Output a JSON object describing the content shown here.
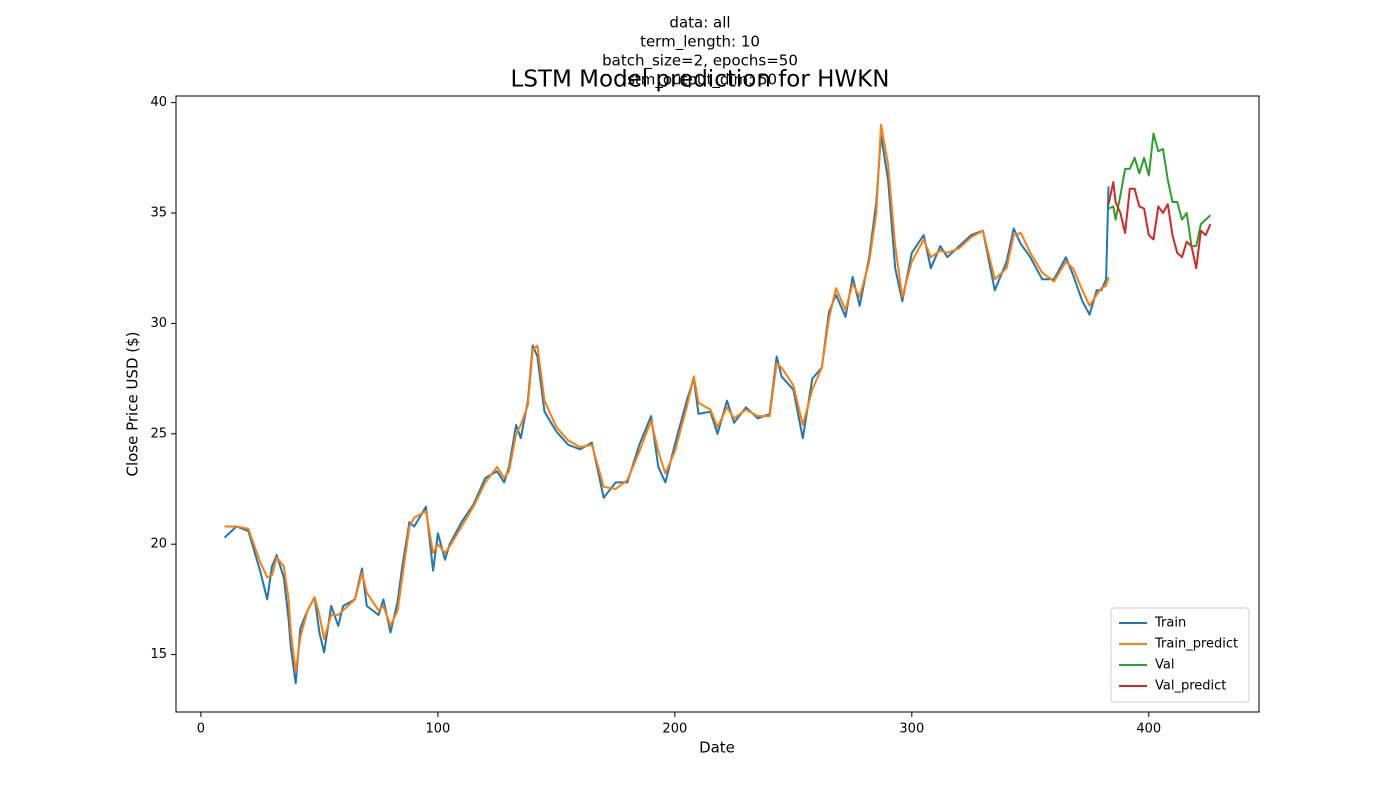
{
  "chart_data": {
    "type": "line",
    "title": "LSTM Model prediction for HWKN",
    "subtitle": [
      "data: all",
      "term_length: 10",
      "batch_size=2, epochs=50",
      "lstm_output_dim: 50"
    ],
    "x_label": "Date",
    "y_label": "Close Price USD ($)",
    "xlim": [
      -10.5,
      446.5
    ],
    "xticks": [
      0,
      100,
      200,
      300,
      400
    ],
    "ylim": [
      12.4,
      40.3
    ],
    "yticks": [
      15,
      20,
      25,
      30,
      35,
      40
    ],
    "legend": "lower right",
    "series": [
      {
        "name": "Train",
        "color": "#1f77b4",
        "x": [
          10,
          15,
          20,
          25,
          28,
          30,
          32,
          35,
          37,
          38,
          40,
          42,
          45,
          48,
          50,
          52,
          55,
          58,
          60,
          65,
          68,
          70,
          75,
          77,
          80,
          83,
          85,
          88,
          90,
          95,
          98,
          100,
          103,
          105,
          110,
          115,
          120,
          125,
          128,
          130,
          133,
          135,
          138,
          140,
          142,
          145,
          150,
          155,
          160,
          165,
          170,
          175,
          180,
          185,
          190,
          193,
          196,
          200,
          205,
          208,
          210,
          215,
          218,
          222,
          225,
          230,
          235,
          240,
          243,
          245,
          250,
          254,
          258,
          262,
          265,
          268,
          272,
          275,
          278,
          282,
          285,
          287,
          290,
          293,
          296,
          300,
          305,
          308,
          312,
          315,
          320,
          325,
          330,
          335,
          340,
          343,
          346,
          350,
          355,
          360,
          365,
          368,
          372,
          375,
          378,
          380,
          382,
          383
        ],
        "values": [
          20.3,
          20.8,
          20.6,
          18.8,
          17.5,
          19.0,
          19.5,
          18.5,
          16.6,
          15.3,
          13.7,
          16.2,
          17.0,
          17.6,
          16.0,
          15.1,
          17.2,
          16.3,
          17.2,
          17.5,
          18.9,
          17.2,
          16.8,
          17.5,
          16.0,
          17.4,
          19.0,
          21.0,
          20.8,
          21.7,
          18.8,
          20.5,
          19.3,
          20.0,
          21.0,
          21.8,
          23.0,
          23.3,
          22.8,
          23.5,
          25.4,
          24.8,
          26.5,
          29.0,
          28.5,
          26.0,
          25.1,
          24.5,
          24.3,
          24.6,
          22.1,
          22.8,
          22.8,
          24.5,
          25.8,
          23.5,
          22.8,
          24.5,
          26.5,
          27.5,
          25.9,
          26.0,
          25.0,
          26.5,
          25.5,
          26.2,
          25.7,
          25.9,
          28.5,
          27.6,
          27.0,
          24.8,
          27.5,
          28.0,
          30.5,
          31.3,
          30.3,
          32.1,
          30.8,
          33.0,
          35.5,
          38.5,
          36.5,
          32.5,
          31.0,
          33.2,
          34.0,
          32.5,
          33.5,
          33.0,
          33.5,
          34.0,
          34.2,
          31.5,
          32.8,
          34.3,
          33.6,
          33.0,
          32.0,
          32.0,
          33.0,
          32.2,
          31.0,
          30.4,
          31.5,
          31.5,
          32.0,
          36.2
        ]
      },
      {
        "name": "Train_predict",
        "color": "#ff7f0e",
        "x": [
          10,
          15,
          20,
          25,
          28,
          30,
          32,
          35,
          37,
          38,
          40,
          42,
          45,
          48,
          50,
          52,
          55,
          58,
          60,
          65,
          68,
          70,
          75,
          77,
          80,
          83,
          85,
          88,
          90,
          95,
          98,
          100,
          103,
          105,
          110,
          115,
          120,
          125,
          128,
          130,
          133,
          135,
          138,
          140,
          142,
          145,
          150,
          155,
          160,
          165,
          170,
          175,
          180,
          185,
          190,
          193,
          196,
          200,
          205,
          208,
          210,
          215,
          218,
          222,
          225,
          230,
          235,
          240,
          243,
          245,
          250,
          254,
          258,
          262,
          265,
          268,
          272,
          275,
          278,
          282,
          285,
          287,
          290,
          293,
          296,
          300,
          305,
          308,
          312,
          315,
          320,
          325,
          330,
          335,
          340,
          343,
          346,
          350,
          355,
          360,
          365,
          368,
          372,
          375,
          378,
          380,
          382,
          383
        ],
        "values": [
          20.8,
          20.8,
          20.7,
          19.2,
          18.5,
          18.6,
          19.4,
          19.0,
          17.5,
          16.0,
          14.2,
          15.8,
          17.0,
          17.6,
          16.8,
          15.7,
          16.8,
          16.8,
          17.0,
          17.5,
          18.7,
          17.8,
          17.0,
          17.2,
          16.3,
          17.0,
          18.5,
          20.8,
          21.2,
          21.5,
          19.6,
          20.0,
          19.6,
          19.9,
          20.8,
          21.7,
          22.8,
          23.5,
          23.0,
          23.3,
          25.0,
          25.4,
          26.3,
          28.8,
          29.0,
          26.5,
          25.3,
          24.7,
          24.4,
          24.5,
          22.6,
          22.5,
          22.9,
          24.2,
          25.6,
          24.2,
          23.2,
          24.2,
          26.2,
          27.6,
          26.4,
          26.1,
          25.3,
          26.2,
          25.7,
          26.1,
          25.8,
          25.8,
          28.2,
          28.0,
          27.2,
          25.4,
          27.0,
          28.0,
          30.2,
          31.6,
          30.6,
          31.8,
          31.2,
          32.8,
          35.0,
          39.0,
          37.2,
          33.5,
          31.2,
          32.8,
          33.8,
          33.0,
          33.3,
          33.2,
          33.4,
          33.9,
          34.2,
          32.0,
          32.5,
          34.0,
          34.1,
          33.2,
          32.3,
          31.9,
          32.8,
          32.5,
          31.5,
          30.8,
          31.3,
          31.6,
          31.7,
          32.1
        ]
      },
      {
        "name": "Val",
        "color": "#2ca02c",
        "x": [
          383,
          385,
          386,
          388,
          390,
          392,
          394,
          396,
          398,
          400,
          402,
          404,
          406,
          408,
          410,
          412,
          414,
          416,
          418,
          420,
          422,
          424,
          426
        ],
        "values": [
          35.2,
          35.3,
          34.7,
          35.8,
          37.0,
          37.0,
          37.5,
          36.8,
          37.5,
          36.7,
          38.6,
          37.8,
          37.9,
          36.5,
          35.5,
          35.5,
          34.7,
          35.0,
          33.5,
          33.5,
          34.5,
          34.7,
          34.9
        ]
      },
      {
        "name": "Val_predict",
        "color": "#d62728",
        "x": [
          383,
          385,
          386,
          388,
          390,
          392,
          394,
          396,
          398,
          400,
          402,
          404,
          406,
          408,
          410,
          412,
          414,
          416,
          418,
          420,
          422,
          424,
          426
        ],
        "values": [
          35.4,
          36.4,
          35.5,
          35.0,
          34.1,
          36.1,
          36.1,
          35.3,
          35.2,
          34.0,
          33.8,
          35.3,
          35.0,
          35.4,
          34.0,
          33.2,
          33.0,
          33.7,
          33.5,
          32.5,
          34.2,
          34.0,
          34.5
        ]
      }
    ]
  }
}
